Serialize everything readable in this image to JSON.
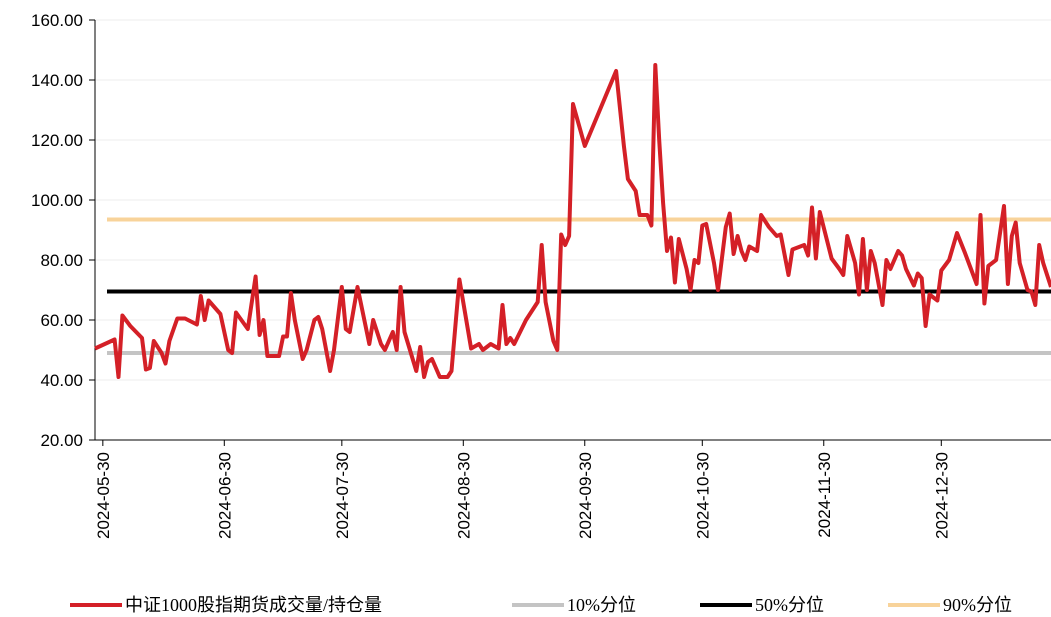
{
  "chart_data": {
    "type": "line",
    "x": [
      "2024-05-28",
      "2024-06-02",
      "2024-06-03",
      "2024-06-04",
      "2024-06-06",
      "2024-06-09",
      "2024-06-10",
      "2024-06-11",
      "2024-06-12",
      "2024-06-14",
      "2024-06-15",
      "2024-06-16",
      "2024-06-18",
      "2024-06-20",
      "2024-06-23",
      "2024-06-24",
      "2024-06-25",
      "2024-06-26",
      "2024-06-29",
      "2024-07-01",
      "2024-07-02",
      "2024-07-03",
      "2024-07-06",
      "2024-07-08",
      "2024-07-09",
      "2024-07-10",
      "2024-07-11",
      "2024-07-14",
      "2024-07-15",
      "2024-07-16",
      "2024-07-17",
      "2024-07-18",
      "2024-07-20",
      "2024-07-21",
      "2024-07-23",
      "2024-07-24",
      "2024-07-25",
      "2024-07-27",
      "2024-07-28",
      "2024-07-30",
      "2024-07-31",
      "2024-08-01",
      "2024-08-03",
      "2024-08-06",
      "2024-08-07",
      "2024-08-09",
      "2024-08-10",
      "2024-08-12",
      "2024-08-13",
      "2024-08-14",
      "2024-08-15",
      "2024-08-18",
      "2024-08-19",
      "2024-08-20",
      "2024-08-21",
      "2024-08-22",
      "2024-08-24",
      "2024-08-26",
      "2024-08-27",
      "2024-08-29",
      "2024-09-01",
      "2024-09-03",
      "2024-09-04",
      "2024-09-06",
      "2024-09-08",
      "2024-09-09",
      "2024-09-10",
      "2024-09-11",
      "2024-09-12",
      "2024-09-15",
      "2024-09-18",
      "2024-09-19",
      "2024-09-20",
      "2024-09-22",
      "2024-09-23",
      "2024-09-24",
      "2024-09-25",
      "2024-09-26",
      "2024-09-27",
      "2024-09-30",
      "2024-10-08",
      "2024-10-10",
      "2024-10-11",
      "2024-10-13",
      "2024-10-14",
      "2024-10-16",
      "2024-10-17",
      "2024-10-18",
      "2024-10-19",
      "2024-10-20",
      "2024-10-21",
      "2024-10-22",
      "2024-10-23",
      "2024-10-24",
      "2024-10-26",
      "2024-10-27",
      "2024-10-28",
      "2024-10-29",
      "2024-10-30",
      "2024-10-31",
      "2024-11-02",
      "2024-11-03",
      "2024-11-05",
      "2024-11-06",
      "2024-11-07",
      "2024-11-08",
      "2024-11-09",
      "2024-11-10",
      "2024-11-11",
      "2024-11-13",
      "2024-11-14",
      "2024-11-16",
      "2024-11-18",
      "2024-11-19",
      "2024-11-21",
      "2024-11-22",
      "2024-11-25",
      "2024-11-26",
      "2024-11-27",
      "2024-11-28",
      "2024-11-29",
      "2024-12-02",
      "2024-12-04",
      "2024-12-05",
      "2024-12-06",
      "2024-12-08",
      "2024-12-09",
      "2024-12-10",
      "2024-12-11",
      "2024-12-12",
      "2024-12-13",
      "2024-12-14",
      "2024-12-15",
      "2024-12-16",
      "2024-12-17",
      "2024-12-19",
      "2024-12-20",
      "2024-12-21",
      "2024-12-23",
      "2024-12-24",
      "2024-12-25",
      "2024-12-26",
      "2024-12-27",
      "2024-12-29",
      "2024-12-30",
      "2025-01-01",
      "2025-01-03",
      "2025-01-05",
      "2025-01-08",
      "2025-01-09",
      "2025-01-10",
      "2025-01-11",
      "2025-01-13",
      "2025-01-15",
      "2025-01-16",
      "2025-01-17",
      "2025-01-18",
      "2025-01-19",
      "2025-01-21",
      "2025-01-22",
      "2025-01-23",
      "2025-01-24",
      "2025-01-25",
      "2025-01-27"
    ],
    "series": [
      {
        "name": "中证1000股指期货成交量/持仓量",
        "color": "#d42027",
        "values": [
          50.5,
          53.5,
          41,
          61.5,
          58,
          54,
          43.5,
          44,
          53,
          49,
          45.5,
          53,
          60.5,
          60.5,
          58.5,
          68,
          60,
          66.5,
          62,
          50,
          49,
          62.5,
          57,
          74.5,
          55,
          60,
          48,
          48,
          54.5,
          54.5,
          69,
          60,
          47,
          50,
          60,
          61,
          57,
          43,
          50,
          71,
          57,
          56,
          71,
          52,
          60,
          52,
          50,
          56,
          50,
          71,
          56,
          43,
          51,
          41,
          46,
          47,
          41,
          41,
          43,
          73.5,
          50.5,
          52,
          50,
          52,
          50.5,
          65,
          52,
          54,
          52,
          60,
          66,
          85,
          66,
          53,
          50,
          88.5,
          85,
          88,
          132,
          118,
          143,
          118,
          107,
          103,
          95,
          95,
          91.5,
          145,
          120,
          99,
          83,
          87.5,
          72.5,
          87,
          77,
          70,
          80,
          79,
          91.5,
          92,
          79,
          70,
          91,
          95.5,
          82,
          88,
          83,
          80,
          84.5,
          83,
          95,
          91,
          88,
          88.5,
          75,
          83.5,
          85,
          81.5,
          97.5,
          80.5,
          96,
          80.5,
          77,
          75,
          88,
          79,
          68.5,
          87,
          70,
          83,
          79,
          72,
          65,
          80,
          77,
          83,
          81.5,
          77,
          71.5,
          75.5,
          74,
          58,
          68.5,
          66.5,
          76.5,
          80,
          89,
          82.5,
          72,
          95,
          65.5,
          78,
          80,
          98,
          72,
          88,
          92.5,
          79,
          70,
          69.5,
          65,
          85,
          79,
          71
        ]
      }
    ],
    "reference_lines": [
      {
        "name": "10%分位",
        "color": "#c4c4c4",
        "value": 49
      },
      {
        "name": "50%分位",
        "color": "#000000",
        "value": 69.5
      },
      {
        "name": "90%分位",
        "color": "#f8d39a",
        "value": 93.5
      }
    ],
    "xlim": [
      "2024-05-28",
      "2025-01-27"
    ],
    "xticks": [
      "2024-05-30",
      "2024-06-30",
      "2024-07-30",
      "2024-08-30",
      "2024-09-30",
      "2024-10-30",
      "2024-11-30",
      "2024-12-30"
    ],
    "ylim": [
      20,
      160
    ],
    "yticks": [
      {
        "value": 20,
        "label": "20.00"
      },
      {
        "value": 40,
        "label": "40.00"
      },
      {
        "value": 60,
        "label": "60.00"
      },
      {
        "value": 80,
        "label": "80.00"
      },
      {
        "value": 100,
        "label": "100.00"
      },
      {
        "value": 120,
        "label": "120.00"
      },
      {
        "value": 140,
        "label": "140.00"
      },
      {
        "value": 160,
        "label": "160.00"
      }
    ],
    "grid": true
  }
}
